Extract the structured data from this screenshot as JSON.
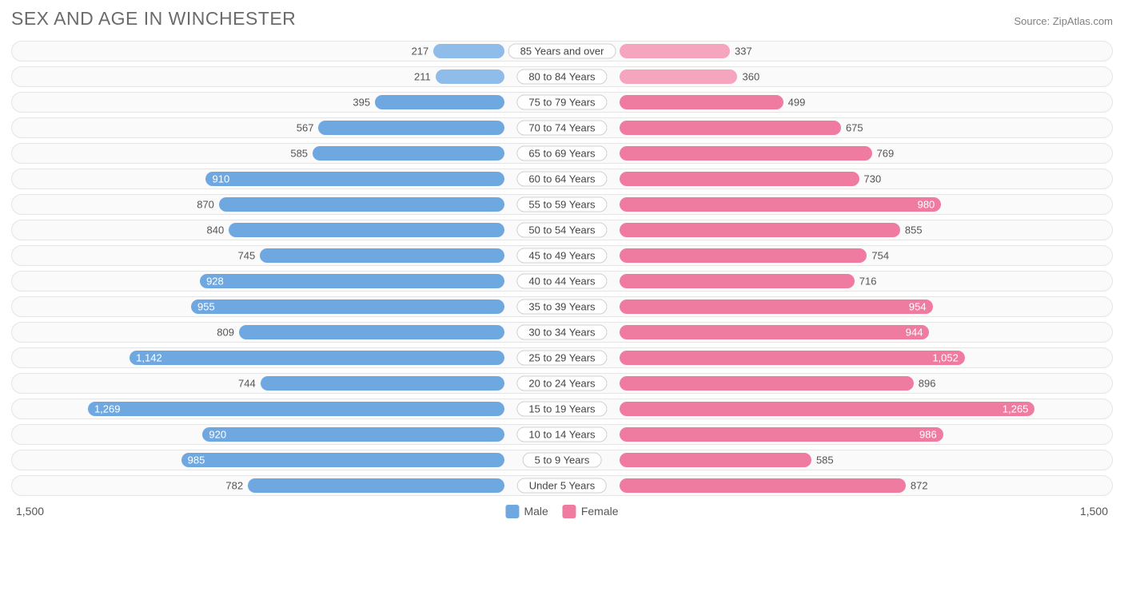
{
  "header": {
    "title": "SEX AND AGE IN WINCHESTER",
    "source": "Source: ZipAtlas.com"
  },
  "chart": {
    "type": "population-pyramid",
    "axis_max": 1500,
    "axis_label_left": "1,500",
    "axis_label_right": "1,500",
    "center_label_width_pct": 5.2,
    "colors": {
      "male_fill": "#6fa8e0",
      "male_fill_light": "#8fbce8",
      "female_fill": "#f07ba0",
      "female_fill_light": "#f5a5be",
      "row_border": "#e5e5e5",
      "row_bg": "#fafafa",
      "text": "#555555",
      "label_inside": "#ffffff"
    },
    "legend": {
      "male": "Male",
      "female": "Female"
    },
    "rows": [
      {
        "label": "85 Years and over",
        "male": 217,
        "male_fmt": "217",
        "female": 337,
        "female_fmt": "337",
        "light": true
      },
      {
        "label": "80 to 84 Years",
        "male": 211,
        "male_fmt": "211",
        "female": 360,
        "female_fmt": "360",
        "light": true
      },
      {
        "label": "75 to 79 Years",
        "male": 395,
        "male_fmt": "395",
        "female": 499,
        "female_fmt": "499",
        "light": false
      },
      {
        "label": "70 to 74 Years",
        "male": 567,
        "male_fmt": "567",
        "female": 675,
        "female_fmt": "675",
        "light": false
      },
      {
        "label": "65 to 69 Years",
        "male": 585,
        "male_fmt": "585",
        "female": 769,
        "female_fmt": "769",
        "light": false
      },
      {
        "label": "60 to 64 Years",
        "male": 910,
        "male_fmt": "910",
        "female": 730,
        "female_fmt": "730",
        "light": false,
        "male_inside": true
      },
      {
        "label": "55 to 59 Years",
        "male": 870,
        "male_fmt": "870",
        "female": 980,
        "female_fmt": "980",
        "light": false,
        "female_inside": true
      },
      {
        "label": "50 to 54 Years",
        "male": 840,
        "male_fmt": "840",
        "female": 855,
        "female_fmt": "855",
        "light": false
      },
      {
        "label": "45 to 49 Years",
        "male": 745,
        "male_fmt": "745",
        "female": 754,
        "female_fmt": "754",
        "light": false
      },
      {
        "label": "40 to 44 Years",
        "male": 928,
        "male_fmt": "928",
        "female": 716,
        "female_fmt": "716",
        "light": false,
        "male_inside": true
      },
      {
        "label": "35 to 39 Years",
        "male": 955,
        "male_fmt": "955",
        "female": 954,
        "female_fmt": "954",
        "light": false,
        "male_inside": true,
        "female_inside": true
      },
      {
        "label": "30 to 34 Years",
        "male": 809,
        "male_fmt": "809",
        "female": 944,
        "female_fmt": "944",
        "light": false,
        "female_inside": true
      },
      {
        "label": "25 to 29 Years",
        "male": 1142,
        "male_fmt": "1,142",
        "female": 1052,
        "female_fmt": "1,052",
        "light": false,
        "male_inside": true,
        "female_inside": true
      },
      {
        "label": "20 to 24 Years",
        "male": 744,
        "male_fmt": "744",
        "female": 896,
        "female_fmt": "896",
        "light": false
      },
      {
        "label": "15 to 19 Years",
        "male": 1269,
        "male_fmt": "1,269",
        "female": 1265,
        "female_fmt": "1,265",
        "light": false,
        "male_inside": true,
        "female_inside": true
      },
      {
        "label": "10 to 14 Years",
        "male": 920,
        "male_fmt": "920",
        "female": 986,
        "female_fmt": "986",
        "light": false,
        "male_inside": true,
        "female_inside": true
      },
      {
        "label": "5 to 9 Years",
        "male": 985,
        "male_fmt": "985",
        "female": 585,
        "female_fmt": "585",
        "light": false,
        "male_inside": true
      },
      {
        "label": "Under 5 Years",
        "male": 782,
        "male_fmt": "782",
        "female": 872,
        "female_fmt": "872",
        "light": false
      }
    ]
  }
}
